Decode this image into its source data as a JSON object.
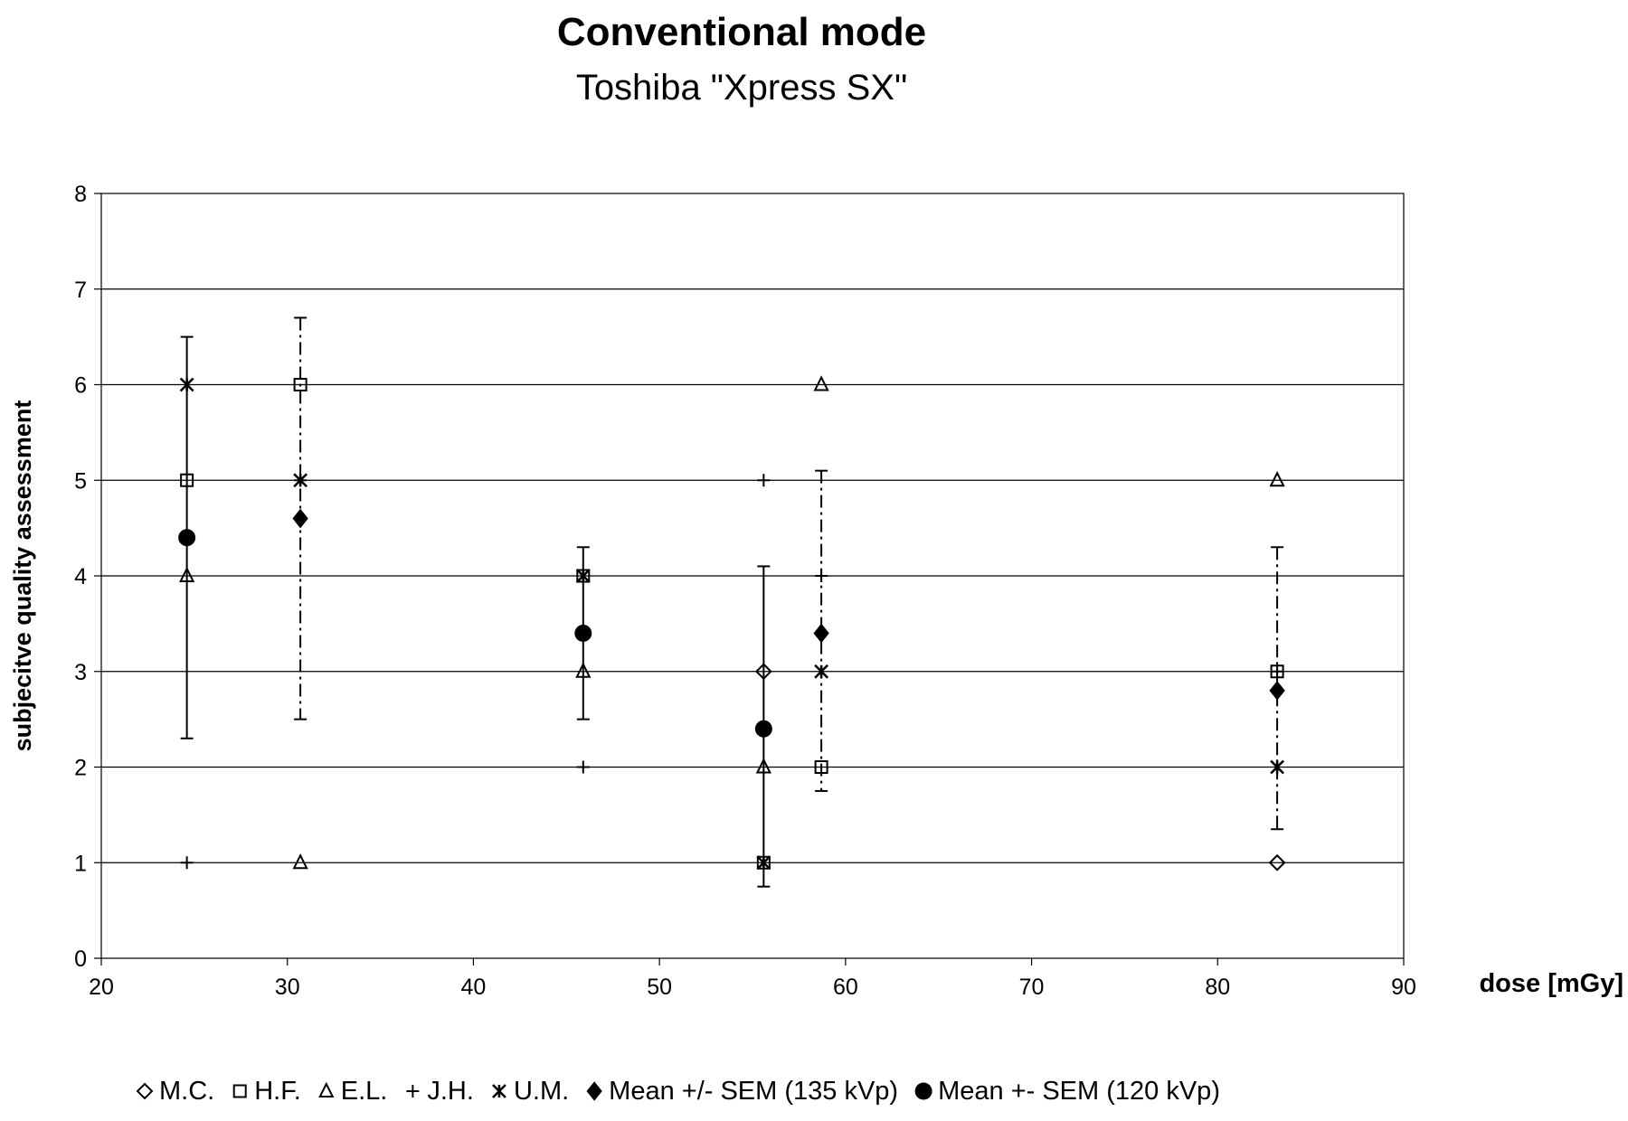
{
  "chart_data": {
    "type": "scatter",
    "title": "Conventional mode",
    "subtitle": "Toshiba \"Xpress SX\"",
    "xlabel": "dose [mGy]",
    "ylabel": "subjecitve quality assessment",
    "xlim": [
      20,
      90
    ],
    "ylim": [
      0,
      8
    ],
    "xticks": [
      20,
      30,
      40,
      50,
      60,
      70,
      80,
      90
    ],
    "yticks": [
      0,
      1,
      2,
      3,
      4,
      5,
      6,
      7,
      8
    ],
    "grid": "horizontal",
    "legend_position": "bottom",
    "series": [
      {
        "name": "M.C.",
        "marker": "diamond-open",
        "points": [
          [
            55.6,
            3
          ],
          [
            83.2,
            1
          ]
        ]
      },
      {
        "name": "H.F.",
        "marker": "square-open",
        "points": [
          [
            24.6,
            5
          ],
          [
            30.7,
            6
          ],
          [
            45.9,
            4
          ],
          [
            55.6,
            1
          ],
          [
            58.7,
            2
          ],
          [
            83.2,
            3
          ]
        ]
      },
      {
        "name": "E.L.",
        "marker": "triangle-open",
        "points": [
          [
            24.6,
            4
          ],
          [
            30.7,
            1
          ],
          [
            45.9,
            3
          ],
          [
            55.6,
            2
          ],
          [
            58.7,
            6
          ],
          [
            83.2,
            5
          ]
        ]
      },
      {
        "name": "J.H.",
        "marker": "plus",
        "points": [
          [
            24.6,
            1
          ],
          [
            30.7,
            5
          ],
          [
            45.9,
            2
          ],
          [
            55.6,
            5
          ],
          [
            58.7,
            4
          ],
          [
            83.2,
            3
          ]
        ]
      },
      {
        "name": "U.M.",
        "marker": "star",
        "points": [
          [
            24.6,
            6
          ],
          [
            30.7,
            5
          ],
          [
            45.9,
            4
          ],
          [
            55.6,
            1
          ],
          [
            58.7,
            3
          ],
          [
            83.2,
            2
          ]
        ]
      },
      {
        "name": "Mean +/- SEM (135 kVp)",
        "marker": "diamond-filled",
        "points": [
          [
            30.7,
            4.6
          ],
          [
            58.7,
            3.4
          ],
          [
            83.2,
            2.8
          ]
        ],
        "error_low": [
          2.5,
          1.75,
          1.35
        ],
        "error_high": [
          6.7,
          5.1,
          4.3
        ],
        "line_style": "dashdot"
      },
      {
        "name": "Mean +- SEM (120 kVp)",
        "marker": "circle-filled",
        "points": [
          [
            24.6,
            4.4
          ],
          [
            45.9,
            3.4
          ],
          [
            55.6,
            2.4
          ]
        ],
        "error_low": [
          2.3,
          2.5,
          0.75
        ],
        "error_high": [
          6.5,
          4.3,
          4.1
        ],
        "line_style": "solid"
      }
    ]
  }
}
